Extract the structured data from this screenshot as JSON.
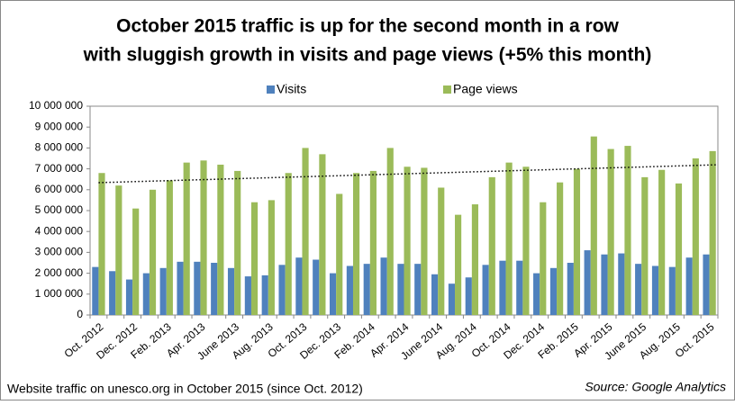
{
  "chart_data": {
    "type": "bar",
    "title": [
      "October 2015 traffic is up for the second month in a row",
      "with sluggish growth in visits and page views (+5% this month)"
    ],
    "footnote": "Website traffic on unesco.org in October 2015 (since Oct. 2012)",
    "source": "Source: Google Analytics",
    "categories": [
      "Oct. 2012",
      null,
      "Dec. 2012",
      null,
      "Feb. 2013",
      null,
      "Apr. 2013",
      null,
      "June 2013",
      null,
      "Aug. 2013",
      null,
      "Oct. 2013",
      null,
      "Dec. 2013",
      null,
      "Feb. 2014",
      null,
      "Apr. 2014",
      null,
      "June 2014",
      null,
      "Aug. 2014",
      null,
      "Oct. 2014",
      null,
      "Dec. 2014",
      null,
      "Feb. 2015",
      null,
      "Apr. 2015",
      null,
      "June 2015",
      null,
      "Aug. 2015",
      null,
      "Oct. 2015"
    ],
    "series": [
      {
        "name": "Visits",
        "color": "#4f81bd",
        "values": [
          2300000,
          2100000,
          1700000,
          2000000,
          2250000,
          2550000,
          2550000,
          2500000,
          2250000,
          1850000,
          1900000,
          2400000,
          2750000,
          2650000,
          2000000,
          2350000,
          2450000,
          2750000,
          2450000,
          2450000,
          1950000,
          1500000,
          1800000,
          2400000,
          2600000,
          2600000,
          2000000,
          2250000,
          2500000,
          3100000,
          2900000,
          2950000,
          2450000,
          2350000,
          2300000,
          2750000,
          2900000
        ]
      },
      {
        "name": "Page views",
        "color": "#9bbb59",
        "values": [
          6800000,
          6200000,
          5100000,
          6000000,
          6450000,
          7300000,
          7400000,
          7200000,
          6900000,
          5400000,
          5500000,
          6800000,
          8000000,
          7700000,
          5800000,
          6800000,
          6900000,
          8000000,
          7100000,
          7050000,
          6100000,
          4800000,
          5300000,
          6600000,
          7300000,
          7100000,
          5400000,
          6350000,
          7000000,
          8550000,
          7950000,
          8100000,
          6600000,
          6950000,
          6300000,
          7500000,
          7850000
        ]
      }
    ],
    "trendline": {
      "series": 1,
      "style": "dotted"
    },
    "ylim": [
      0,
      10000000
    ],
    "yticks": [
      0,
      {
        "value": 1000000,
        "label": "1 000 000"
      },
      {
        "value": 2000000,
        "label": "2 000 000"
      },
      {
        "value": 3000000,
        "label": "3 000 000"
      },
      {
        "value": 4000000,
        "label": "4 000 000"
      },
      {
        "value": 5000000,
        "label": "5 000 000"
      },
      {
        "value": 6000000,
        "label": "6 000 000"
      },
      {
        "value": 7000000,
        "label": "7 000 000"
      },
      {
        "value": 8000000,
        "label": "8 000 000"
      },
      {
        "value": 9000000,
        "label": "9 000 000"
      },
      {
        "value": 10000000,
        "label": "10 000 000"
      }
    ],
    "grid": false,
    "legend": "top"
  }
}
